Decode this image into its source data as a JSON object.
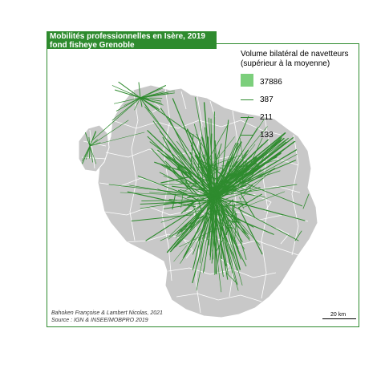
{
  "title_line1": "Mobilités professionnelles en Isère, 2019",
  "title_line2": " fond fisheye Grenoble",
  "legend": {
    "title_line1": "Volume bilatéral de navetteurs",
    "title_line2": " (supérieur à la moyenne)",
    "entries": [
      {
        "label": "37886",
        "kind": "box"
      },
      {
        "label": "387",
        "kind": "line"
      },
      {
        "label": "211",
        "kind": "line"
      },
      {
        "label": "133",
        "kind": "line"
      }
    ]
  },
  "credit_line1": "Bahoken Françoise & Lambert Nicolas, 2021",
  "credit_line2": " Source : IGN & INSEE/MOBPRO 2019",
  "scale_label": "20 km",
  "colors": {
    "flow": "#2e8b2e",
    "legend_box": "#7ccf7c",
    "territory": "#c8c8c8",
    "boundary": "#ffffff",
    "frame": "#2e8b2e"
  }
}
